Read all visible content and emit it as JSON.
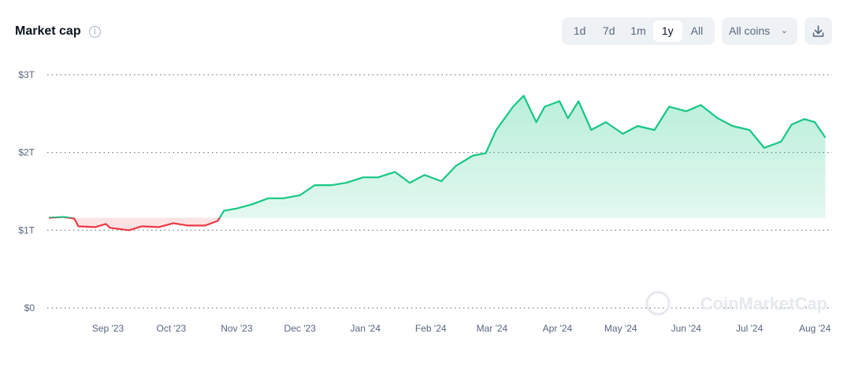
{
  "header": {
    "title": "Market cap",
    "info_icon": "info-icon",
    "ranges": [
      "1d",
      "7d",
      "1m",
      "1y",
      "All"
    ],
    "selected_range": "1y",
    "coin_filter": "All coins",
    "download_icon": "download-icon"
  },
  "watermark": "CoinMarketCap",
  "chart_data": {
    "type": "area",
    "title": "Market cap",
    "ylim": [
      0,
      3
    ],
    "y_unit": "trillion USD",
    "y_ticks": [
      "$0",
      "$1T",
      "$2T",
      "$3T"
    ],
    "x_ticks": [
      "Sep '23",
      "Oct '23",
      "Nov '23",
      "Dec '23",
      "Jan '24",
      "Feb '24",
      "Mar '24",
      "Apr '24",
      "May '24",
      "Jun '24",
      "Jul '24",
      "Aug '24"
    ],
    "x_tick_dates": [
      "2023-09-01",
      "2023-10-01",
      "2023-11-01",
      "2023-12-01",
      "2024-01-01",
      "2024-02-01",
      "2024-03-01",
      "2024-04-01",
      "2024-05-01",
      "2024-06-01",
      "2024-07-01",
      "2024-08-01"
    ],
    "grid": "horizontal dotted",
    "colors": {
      "up": "#16c784",
      "down": "#ea3943"
    },
    "baseline": 1.16,
    "points": [
      [
        "2023-08-04",
        1.16
      ],
      [
        "2023-08-11",
        1.17
      ],
      [
        "2023-08-16",
        1.15
      ],
      [
        "2023-08-18",
        1.05
      ],
      [
        "2023-08-26",
        1.04
      ],
      [
        "2023-08-31",
        1.08
      ],
      [
        "2023-09-02",
        1.03
      ],
      [
        "2023-09-11",
        1.0
      ],
      [
        "2023-09-17",
        1.05
      ],
      [
        "2023-09-25",
        1.04
      ],
      [
        "2023-10-02",
        1.09
      ],
      [
        "2023-10-09",
        1.06
      ],
      [
        "2023-10-17",
        1.06
      ],
      [
        "2023-10-23",
        1.12
      ],
      [
        "2023-10-26",
        1.25
      ],
      [
        "2023-11-01",
        1.28
      ],
      [
        "2023-11-08",
        1.33
      ],
      [
        "2023-11-16",
        1.41
      ],
      [
        "2023-11-23",
        1.41
      ],
      [
        "2023-12-01",
        1.45
      ],
      [
        "2023-12-08",
        1.58
      ],
      [
        "2023-12-16",
        1.58
      ],
      [
        "2023-12-23",
        1.61
      ],
      [
        "2023-12-31",
        1.68
      ],
      [
        "2024-01-07",
        1.68
      ],
      [
        "2024-01-15",
        1.75
      ],
      [
        "2024-01-22",
        1.61
      ],
      [
        "2024-01-29",
        1.71
      ],
      [
        "2024-02-06",
        1.63
      ],
      [
        "2024-02-13",
        1.83
      ],
      [
        "2024-02-21",
        1.96
      ],
      [
        "2024-02-27",
        1.99
      ],
      [
        "2024-03-03",
        2.29
      ],
      [
        "2024-03-11",
        2.59
      ],
      [
        "2024-03-16",
        2.73
      ],
      [
        "2024-03-22",
        2.39
      ],
      [
        "2024-03-26",
        2.59
      ],
      [
        "2024-04-02",
        2.66
      ],
      [
        "2024-04-06",
        2.44
      ],
      [
        "2024-04-11",
        2.66
      ],
      [
        "2024-04-17",
        2.29
      ],
      [
        "2024-04-24",
        2.39
      ],
      [
        "2024-05-02",
        2.24
      ],
      [
        "2024-05-09",
        2.34
      ],
      [
        "2024-05-17",
        2.29
      ],
      [
        "2024-05-24",
        2.59
      ],
      [
        "2024-06-01",
        2.53
      ],
      [
        "2024-06-08",
        2.61
      ],
      [
        "2024-06-16",
        2.44
      ],
      [
        "2024-06-23",
        2.34
      ],
      [
        "2024-07-01",
        2.29
      ],
      [
        "2024-07-08",
        2.06
      ],
      [
        "2024-07-16",
        2.14
      ],
      [
        "2024-07-21",
        2.36
      ],
      [
        "2024-07-27",
        2.43
      ],
      [
        "2024-08-01",
        2.39
      ],
      [
        "2024-08-06",
        2.19
      ]
    ]
  }
}
